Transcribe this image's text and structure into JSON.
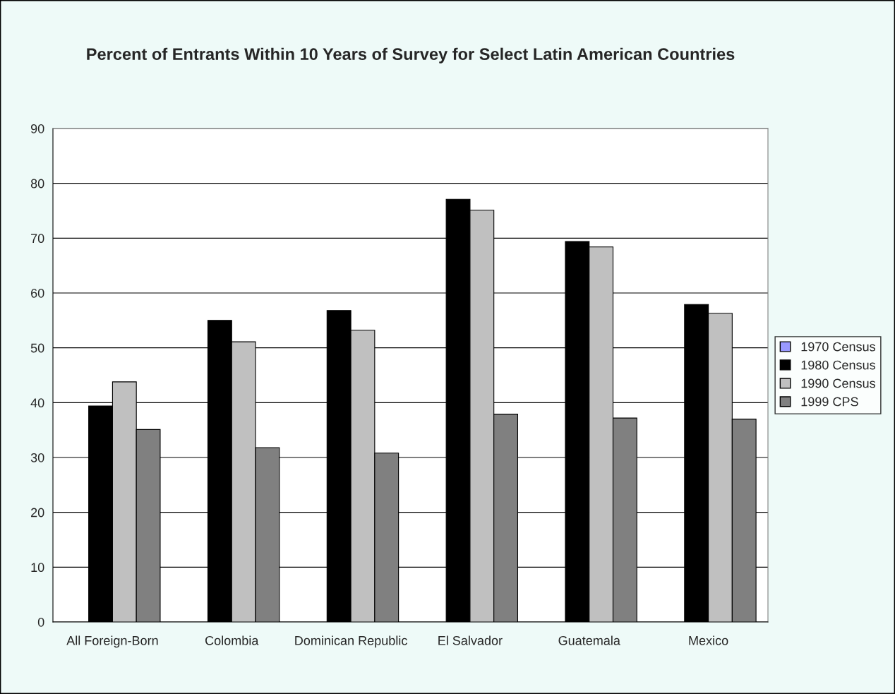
{
  "chart_data": {
    "type": "bar",
    "title": "Percent of Entrants Within 10 Years of Survey for Select Latin American Countries",
    "categories": [
      "All Foreign-Born",
      "Colombia",
      "Dominican Republic",
      "El Salvador",
      "Guatemala",
      "Mexico"
    ],
    "series": [
      {
        "name": "1970 Census",
        "color": "#9999ff",
        "values": [
          null,
          null,
          null,
          null,
          null,
          null
        ]
      },
      {
        "name": "1980 Census",
        "color": "#000000",
        "values": [
          39.4,
          55.0,
          56.8,
          77.1,
          69.4,
          57.9
        ]
      },
      {
        "name": "1990 Census",
        "color": "#c0c0c0",
        "values": [
          43.8,
          51.1,
          53.2,
          75.1,
          68.4,
          56.3
        ]
      },
      {
        "name": "1999 CPS",
        "color": "#808080",
        "values": [
          35.1,
          31.8,
          30.8,
          37.9,
          37.2,
          37.0
        ]
      }
    ],
    "ylim": [
      0,
      90
    ],
    "yticks": [
      0,
      10,
      20,
      30,
      40,
      50,
      60,
      70,
      80,
      90
    ],
    "grid": "y",
    "legend": "right"
  }
}
